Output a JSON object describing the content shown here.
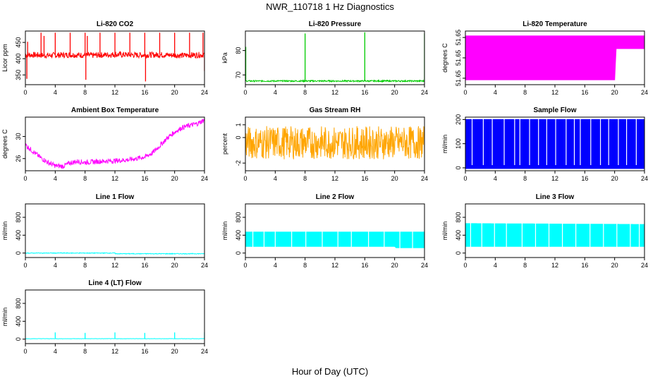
{
  "figure": {
    "title": "NWR_110718  1 Hz Diagnostics",
    "xlabel": "Hour of Day (UTC)"
  },
  "chart_data": [
    {
      "type": "line",
      "title": "Li-820 CO2",
      "ylabel": "Licor ppm",
      "xlim": [
        0,
        24
      ],
      "ylim": [
        320,
        485
      ],
      "x_ticks": [
        "0",
        "4",
        "8",
        "12",
        "16",
        "20",
        "24"
      ],
      "y_ticks": [
        "350",
        "400",
        "450"
      ],
      "color": "#ff0000",
      "grid": false,
      "profile": [
        [
          0,
          412
        ],
        [
          3,
          410
        ],
        [
          6,
          412
        ],
        [
          9,
          410
        ],
        [
          12,
          413
        ],
        [
          15,
          411
        ],
        [
          18,
          412
        ],
        [
          21,
          410
        ],
        [
          24,
          412
        ]
      ],
      "noise": 9,
      "spikes": [
        [
          0.2,
          338
        ],
        [
          0.3,
          452
        ],
        [
          2.1,
          480
        ],
        [
          2.5,
          470
        ],
        [
          4.0,
          480
        ],
        [
          6.0,
          480
        ],
        [
          8.0,
          480
        ],
        [
          8.1,
          335
        ],
        [
          8.3,
          470
        ],
        [
          10.0,
          480
        ],
        [
          12.0,
          480
        ],
        [
          14.0,
          480
        ],
        [
          16.0,
          480
        ],
        [
          16.1,
          330
        ],
        [
          18.0,
          480
        ],
        [
          20.0,
          480
        ],
        [
          22.0,
          480
        ],
        [
          23.8,
          480
        ],
        [
          24.0,
          362
        ]
      ]
    },
    {
      "type": "line",
      "title": "Li-820 Pressure",
      "ylabel": "kPa",
      "xlim": [
        0,
        24
      ],
      "ylim": [
        66,
        88
      ],
      "x_ticks": [
        "0",
        "4",
        "8",
        "12",
        "16",
        "20",
        "24"
      ],
      "y_ticks": [
        "70",
        "80"
      ],
      "color": "#00cc00",
      "grid": false,
      "profile": [
        [
          0,
          67.5
        ],
        [
          24,
          67.5
        ]
      ],
      "noise": 0.3,
      "spikes": [
        [
          0.05,
          81.5
        ],
        [
          8.0,
          87
        ],
        [
          16.0,
          87.5
        ],
        [
          24.0,
          87
        ]
      ]
    },
    {
      "type": "line",
      "title": "Li-820 Temperature",
      "ylabel": "degrees C",
      "xlim": [
        0,
        24
      ],
      "ylim": [
        51.649,
        51.6545
      ],
      "x_ticks": [
        "0",
        "4",
        "8",
        "12",
        "16",
        "20",
        "24"
      ],
      "y_ticks": [
        "51.65",
        "51.65",
        "51.65"
      ],
      "color": "#ff00ff",
      "grid": false,
      "band": [
        [
          0.2,
          51.6495,
          51.654
        ],
        [
          20.0,
          51.6495,
          51.654
        ],
        [
          20.2,
          51.6527,
          51.654
        ],
        [
          24,
          51.6527,
          51.654
        ]
      ]
    },
    {
      "type": "line",
      "title": "Ambient Box Temperature",
      "ylabel": "degrees C",
      "xlim": [
        0,
        24
      ],
      "ylim": [
        23.8,
        33.5
      ],
      "x_ticks": [
        "0",
        "4",
        "8",
        "12",
        "16",
        "20",
        "24"
      ],
      "y_ticks": [
        "26",
        "30"
      ],
      "color": "#ff00ff",
      "grid": false,
      "profile": [
        [
          0,
          28.5
        ],
        [
          1,
          27.3
        ],
        [
          2,
          26.2
        ],
        [
          3,
          25.3
        ],
        [
          4,
          24.7
        ],
        [
          5,
          24.6
        ],
        [
          6,
          25.2
        ],
        [
          7,
          25.5
        ],
        [
          8,
          25.3
        ],
        [
          10,
          25.5
        ],
        [
          12,
          25.6
        ],
        [
          14,
          25.8
        ],
        [
          16,
          26.3
        ],
        [
          17,
          27.0
        ],
        [
          18,
          28.3
        ],
        [
          19,
          29.7
        ],
        [
          20,
          30.8
        ],
        [
          21,
          31.6
        ],
        [
          22,
          32.0
        ],
        [
          23,
          32.3
        ],
        [
          24,
          33.0
        ]
      ],
      "noise": 0.45
    },
    {
      "type": "line",
      "title": "Gas Stream RH",
      "ylabel": "percent",
      "xlim": [
        0,
        24
      ],
      "ylim": [
        -2.6,
        1.6
      ],
      "x_ticks": [
        "0",
        "4",
        "8",
        "12",
        "16",
        "20",
        "24"
      ],
      "y_ticks": [
        "-2",
        "0",
        "1"
      ],
      "color": "#ffa500",
      "grid": false,
      "profile": [
        [
          0,
          -0.4
        ],
        [
          24,
          -0.4
        ]
      ],
      "noise": 1.3
    },
    {
      "type": "line",
      "title": "Sample Flow",
      "ylabel": "ml/min",
      "xlim": [
        0,
        24
      ],
      "ylim": [
        -12,
        210
      ],
      "x_ticks": [
        "0",
        "4",
        "8",
        "12",
        "16",
        "20",
        "24"
      ],
      "y_ticks": [
        "0",
        "100",
        "200"
      ],
      "color": "#0000ff",
      "grid": false,
      "band": [
        [
          0,
          -3,
          200
        ],
        [
          24,
          -3,
          200
        ]
      ],
      "gaps": [
        0.9,
        2.4,
        3.6,
        5.2,
        6.6,
        7.3,
        8.6,
        9.8,
        10.9,
        12.1,
        13.5,
        14.6,
        15.4,
        16.8,
        18.1,
        19.2,
        20.5,
        21.6,
        22.9
      ]
    },
    {
      "type": "line",
      "title": "Line 1 Flow",
      "ylabel": "ml/min",
      "xlim": [
        0,
        24
      ],
      "ylim": [
        -100,
        1100
      ],
      "x_ticks": [
        "0",
        "4",
        "8",
        "12",
        "16",
        "20",
        "24"
      ],
      "y_ticks": [
        "0",
        "400",
        "800"
      ],
      "color": "#00ffff",
      "grid": false,
      "profile": [
        [
          0,
          0
        ],
        [
          12,
          0
        ],
        [
          12.1,
          -15
        ],
        [
          24,
          -15
        ]
      ],
      "noise": 8
    },
    {
      "type": "line",
      "title": "Line 2 Flow",
      "ylabel": "ml/min",
      "xlim": [
        0,
        24
      ],
      "ylim": [
        -100,
        1100
      ],
      "x_ticks": [
        "0",
        "4",
        "8",
        "12",
        "16",
        "20",
        "24"
      ],
      "y_ticks": [
        "0",
        "400",
        "800"
      ],
      "color": "#00ffff",
      "grid": false,
      "band": [
        [
          0,
          150,
          470
        ],
        [
          20,
          150,
          470
        ],
        [
          20.2,
          120,
          470
        ],
        [
          24,
          120,
          470
        ]
      ],
      "gaps": [
        1.0,
        2.5,
        4.0,
        6.2,
        8.1,
        10.3,
        12.4,
        14.2,
        16.5,
        18.6,
        20.7,
        22.4
      ]
    },
    {
      "type": "line",
      "title": "Line 3 Flow",
      "ylabel": "ml/min",
      "xlim": [
        0,
        24
      ],
      "ylim": [
        -100,
        1100
      ],
      "x_ticks": [
        "0",
        "4",
        "8",
        "12",
        "16",
        "20",
        "24"
      ],
      "y_ticks": [
        "0",
        "400",
        "800"
      ],
      "color": "#00ffff",
      "grid": false,
      "band": [
        [
          0,
          150,
          660
        ],
        [
          24,
          150,
          640
        ]
      ],
      "gaps": [
        0.7,
        2.2,
        3.9,
        5.5,
        7.6,
        9.4,
        11.2,
        13.0,
        14.8,
        16.7,
        18.5,
        20.3,
        22.1,
        23.3
      ]
    },
    {
      "type": "line",
      "title": "Line 4 (LT) Flow",
      "ylabel": "ml/min",
      "xlim": [
        0,
        24
      ],
      "ylim": [
        -100,
        1100
      ],
      "x_ticks": [
        "0",
        "4",
        "8",
        "12",
        "16",
        "20",
        "24"
      ],
      "y_ticks": [
        "0",
        "400",
        "800"
      ],
      "color": "#00ffff",
      "grid": false,
      "profile": [
        [
          0,
          10
        ],
        [
          24,
          10
        ]
      ],
      "noise": 3,
      "spikes": [
        [
          4.0,
          150
        ],
        [
          8.0,
          140
        ],
        [
          12.0,
          150
        ],
        [
          16.0,
          140
        ],
        [
          20.0,
          150
        ],
        [
          24.0,
          150
        ]
      ]
    }
  ]
}
